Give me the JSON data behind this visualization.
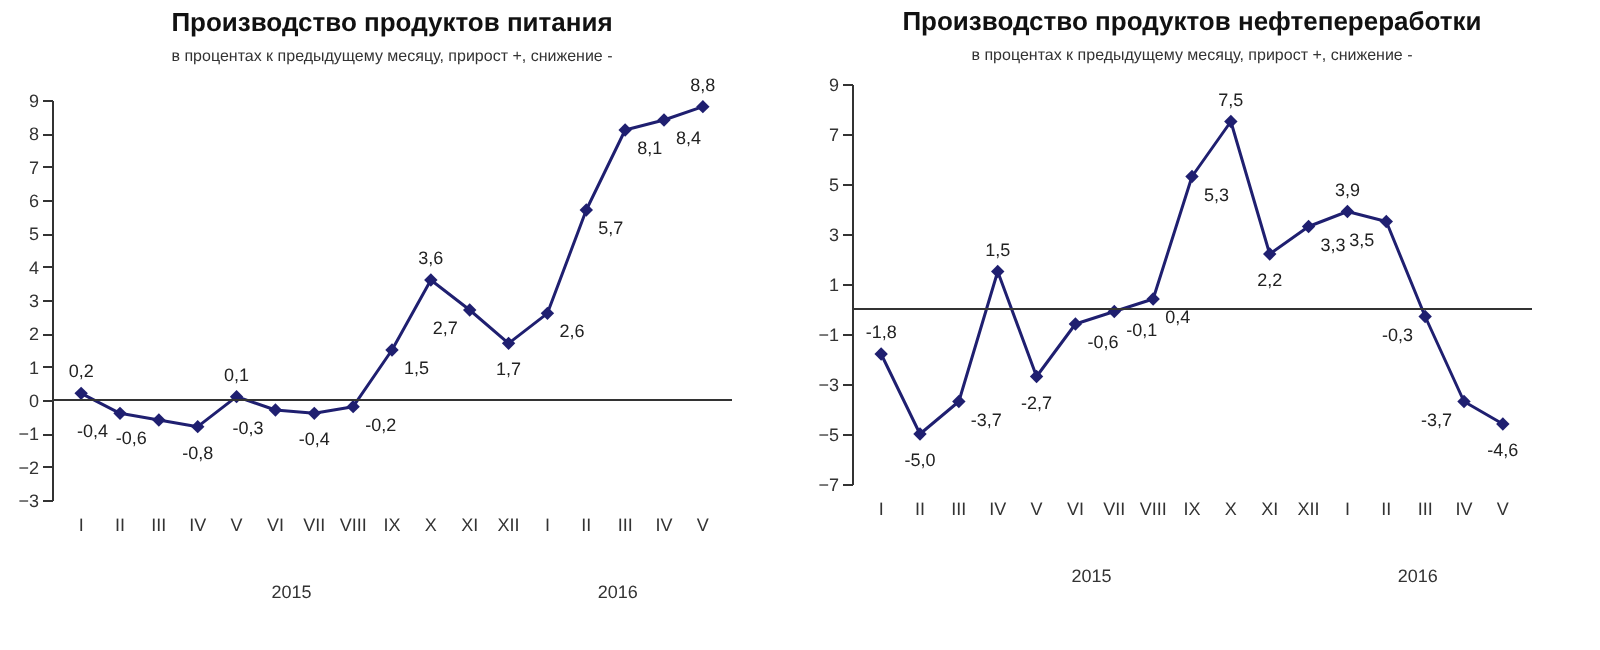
{
  "chart_data": [
    {
      "type": "line",
      "title": "Производство продуктов питания",
      "subtitle": "в процентах к предыдущему месяцу, прирост +, снижение -",
      "categories": [
        "I",
        "II",
        "III",
        "IV",
        "V",
        "VI",
        "VII",
        "VIII",
        "IX",
        "X",
        "XI",
        "XII",
        "I",
        "II",
        "III",
        "IV",
        "V"
      ],
      "series": [
        {
          "color": "#1f1f70",
          "values": [
            0.2,
            -0.4,
            -0.6,
            -0.8,
            0.1,
            -0.3,
            -0.4,
            -0.2,
            1.5,
            3.6,
            2.7,
            1.7,
            2.6,
            5.7,
            8.1,
            8.4,
            8.8
          ],
          "value_labels": [
            "0,2",
            "-0,4",
            "-0,6",
            "-0,8",
            "0,1",
            "-0,3",
            "-0,4",
            "-0,2",
            "1,5",
            "3,6",
            "2,7",
            "1,7",
            "2,6",
            "5,7",
            "8,1",
            "8,4",
            "8,8"
          ]
        }
      ],
      "ylim": [
        -3,
        9
      ],
      "yticks": [
        -3,
        -2,
        -1,
        0,
        1,
        2,
        3,
        4,
        5,
        6,
        7,
        8,
        9
      ],
      "marker": "diamond",
      "grid": false,
      "ref_lines": [
        {
          "axis": "y",
          "value": 0
        }
      ],
      "annotations": [
        "2015",
        "2016"
      ]
    },
    {
      "type": "line",
      "title": "Производство продуктов нефтепереработки",
      "subtitle": "в процентах к предыдущему месяцу, прирост +, снижение -",
      "categories": [
        "I",
        "II",
        "III",
        "IV",
        "V",
        "VI",
        "VII",
        "VIII",
        "IX",
        "X",
        "XI",
        "XII",
        "I",
        "II",
        "III",
        "IV",
        "V"
      ],
      "series": [
        {
          "color": "#1f1f70",
          "values": [
            -1.8,
            -5.0,
            -3.7,
            1.5,
            -2.7,
            -0.6,
            -0.1,
            0.4,
            5.3,
            7.5,
            2.2,
            3.3,
            3.9,
            3.5,
            -0.3,
            -3.7,
            -4.6
          ],
          "value_labels": [
            "-1,8",
            "-5,0",
            "-3,7",
            "1,5",
            "-2,7",
            "-0,6",
            "-0,1",
            "0,4",
            "5,3",
            "7,5",
            "2,2",
            "3,3",
            "3,9",
            "3,5",
            "-0,3",
            "-3,7",
            "-4,6"
          ]
        }
      ],
      "ylim": [
        -7,
        9
      ],
      "yticks": [
        -7,
        -5,
        -3,
        -1,
        1,
        3,
        5,
        7,
        9
      ],
      "marker": "diamond",
      "grid": false,
      "ref_lines": [
        {
          "axis": "y",
          "value": 0
        }
      ],
      "annotations": [
        "2015",
        "2016"
      ]
    }
  ]
}
